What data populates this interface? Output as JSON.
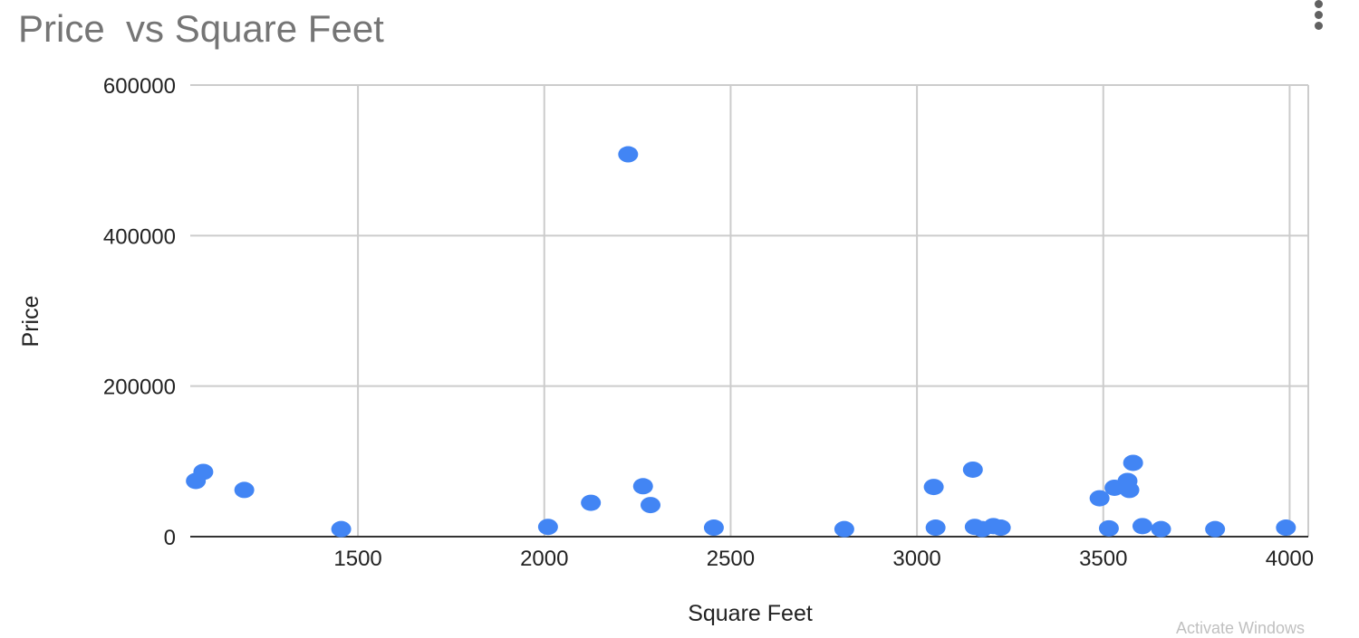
{
  "chart_data": {
    "type": "scatter",
    "title": "Price  vs Square Feet",
    "xlabel": "Square Feet",
    "ylabel": "Price",
    "xlim": [
      1050,
      4050
    ],
    "ylim": [
      0,
      600000
    ],
    "xticks": [
      1500,
      2000,
      2500,
      3000,
      3500,
      4000
    ],
    "yticks": [
      0,
      200000,
      400000,
      600000
    ],
    "grid": true,
    "legend": "none",
    "series": [
      {
        "color": "#4285f4",
        "points": [
          {
            "x": 1065,
            "y": 74000
          },
          {
            "x": 1085,
            "y": 86000
          },
          {
            "x": 1195,
            "y": 62000
          },
          {
            "x": 1455,
            "y": 10000
          },
          {
            "x": 2010,
            "y": 13000
          },
          {
            "x": 2125,
            "y": 45000
          },
          {
            "x": 2225,
            "y": 508000
          },
          {
            "x": 2265,
            "y": 67000
          },
          {
            "x": 2285,
            "y": 42000
          },
          {
            "x": 2455,
            "y": 12000
          },
          {
            "x": 2805,
            "y": 10000
          },
          {
            "x": 3045,
            "y": 66000
          },
          {
            "x": 3050,
            "y": 12000
          },
          {
            "x": 3150,
            "y": 89000
          },
          {
            "x": 3155,
            "y": 13000
          },
          {
            "x": 3175,
            "y": 10000
          },
          {
            "x": 3205,
            "y": 14000
          },
          {
            "x": 3225,
            "y": 12000
          },
          {
            "x": 3490,
            "y": 51000
          },
          {
            "x": 3515,
            "y": 11000
          },
          {
            "x": 3530,
            "y": 65000
          },
          {
            "x": 3565,
            "y": 74000
          },
          {
            "x": 3570,
            "y": 62000
          },
          {
            "x": 3580,
            "y": 98000
          },
          {
            "x": 3605,
            "y": 14000
          },
          {
            "x": 3655,
            "y": 10000
          },
          {
            "x": 3800,
            "y": 10000
          },
          {
            "x": 3990,
            "y": 12000
          }
        ]
      }
    ]
  },
  "watermark": "Activate Windows"
}
